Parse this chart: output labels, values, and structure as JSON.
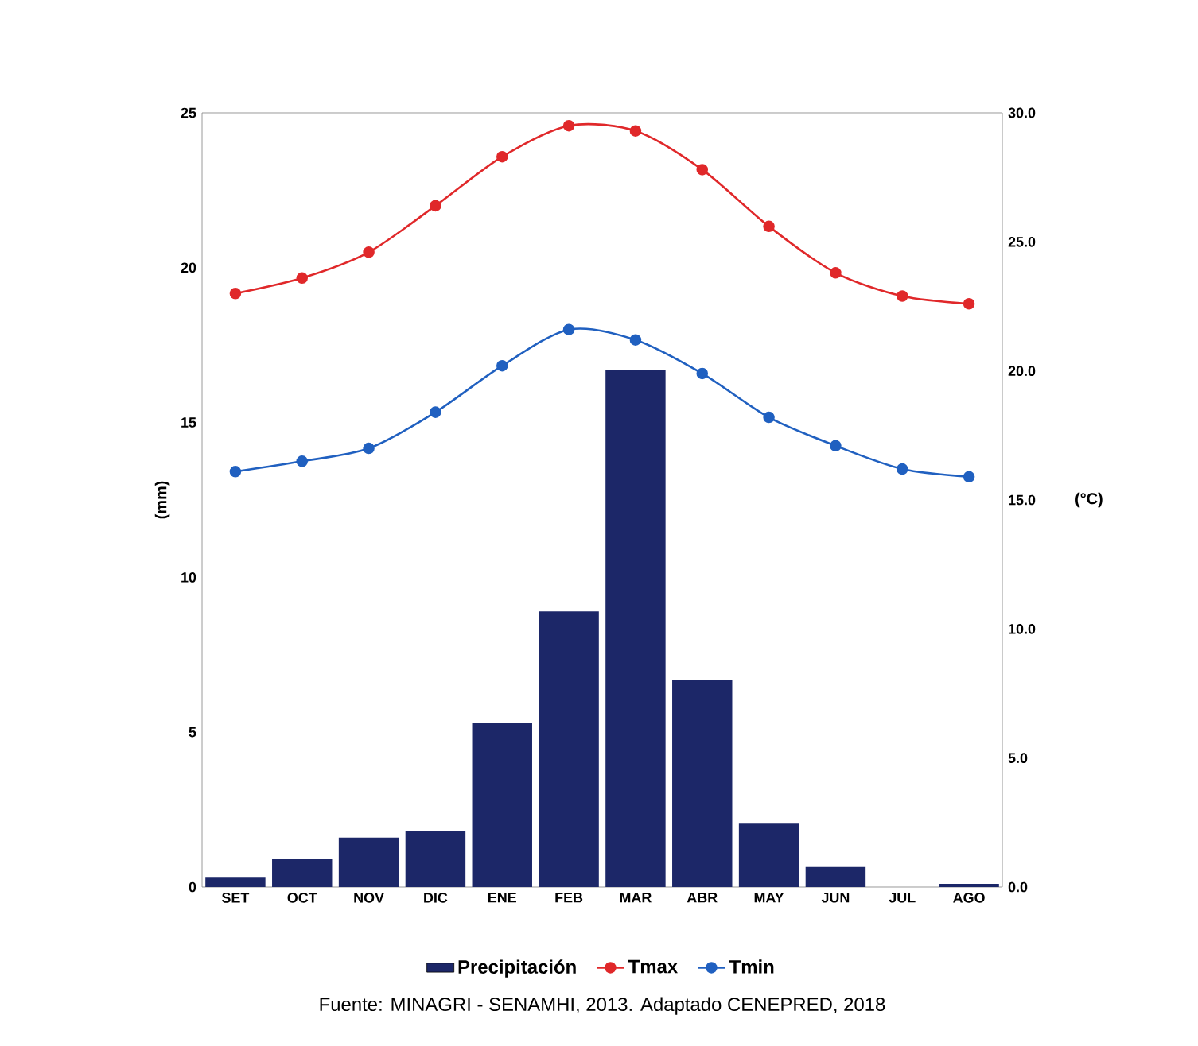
{
  "chart_data": {
    "type": "bar",
    "categories": [
      "SET",
      "OCT",
      "NOV",
      "DIC",
      "ENE",
      "FEB",
      "MAR",
      "ABR",
      "MAY",
      "JUN",
      "JUL",
      "AGO"
    ],
    "series": [
      {
        "name": "Precipitación",
        "color": "#1c2768",
        "values": [
          0.3,
          0.9,
          1.6,
          1.8,
          5.3,
          8.9,
          16.7,
          6.7,
          2.05,
          0.65,
          0,
          0.1
        ]
      },
      {
        "name": "Tmax",
        "type": "line",
        "axis": "y2",
        "color": "#e0282a",
        "values": [
          23.0,
          23.6,
          24.6,
          26.4,
          28.3,
          29.5,
          29.3,
          27.8,
          25.6,
          23.8,
          22.9,
          22.6
        ]
      },
      {
        "name": "Tmin",
        "type": "line",
        "axis": "y2",
        "color": "#2060c0",
        "values": [
          16.1,
          16.5,
          17.0,
          18.4,
          20.2,
          21.6,
          21.2,
          19.9,
          18.2,
          17.1,
          16.2,
          15.9
        ]
      }
    ],
    "ylabel": "(mm)",
    "y2label": "(°C)",
    "ylim": [
      0,
      25
    ],
    "yticks": [
      0,
      5,
      10,
      15,
      20,
      25
    ],
    "y2lim": [
      0,
      30
    ],
    "y2ticks": [
      {
        "value": 0,
        "label": "0.0"
      },
      {
        "value": 5,
        "label": "5.0"
      },
      {
        "value": 10,
        "label": "10.0"
      },
      {
        "value": 15,
        "label": "15.0"
      },
      {
        "value": 20,
        "label": "20.0"
      },
      {
        "value": 25,
        "label": "25.0"
      },
      {
        "value": 30,
        "label": "30.0"
      }
    ],
    "marker": "circle",
    "grid": false,
    "legend": "bottom",
    "annotations": [
      "Fuente: MINAGRI - SENAMHI, 2013. Adaptado CENEPRED, 2018"
    ]
  }
}
